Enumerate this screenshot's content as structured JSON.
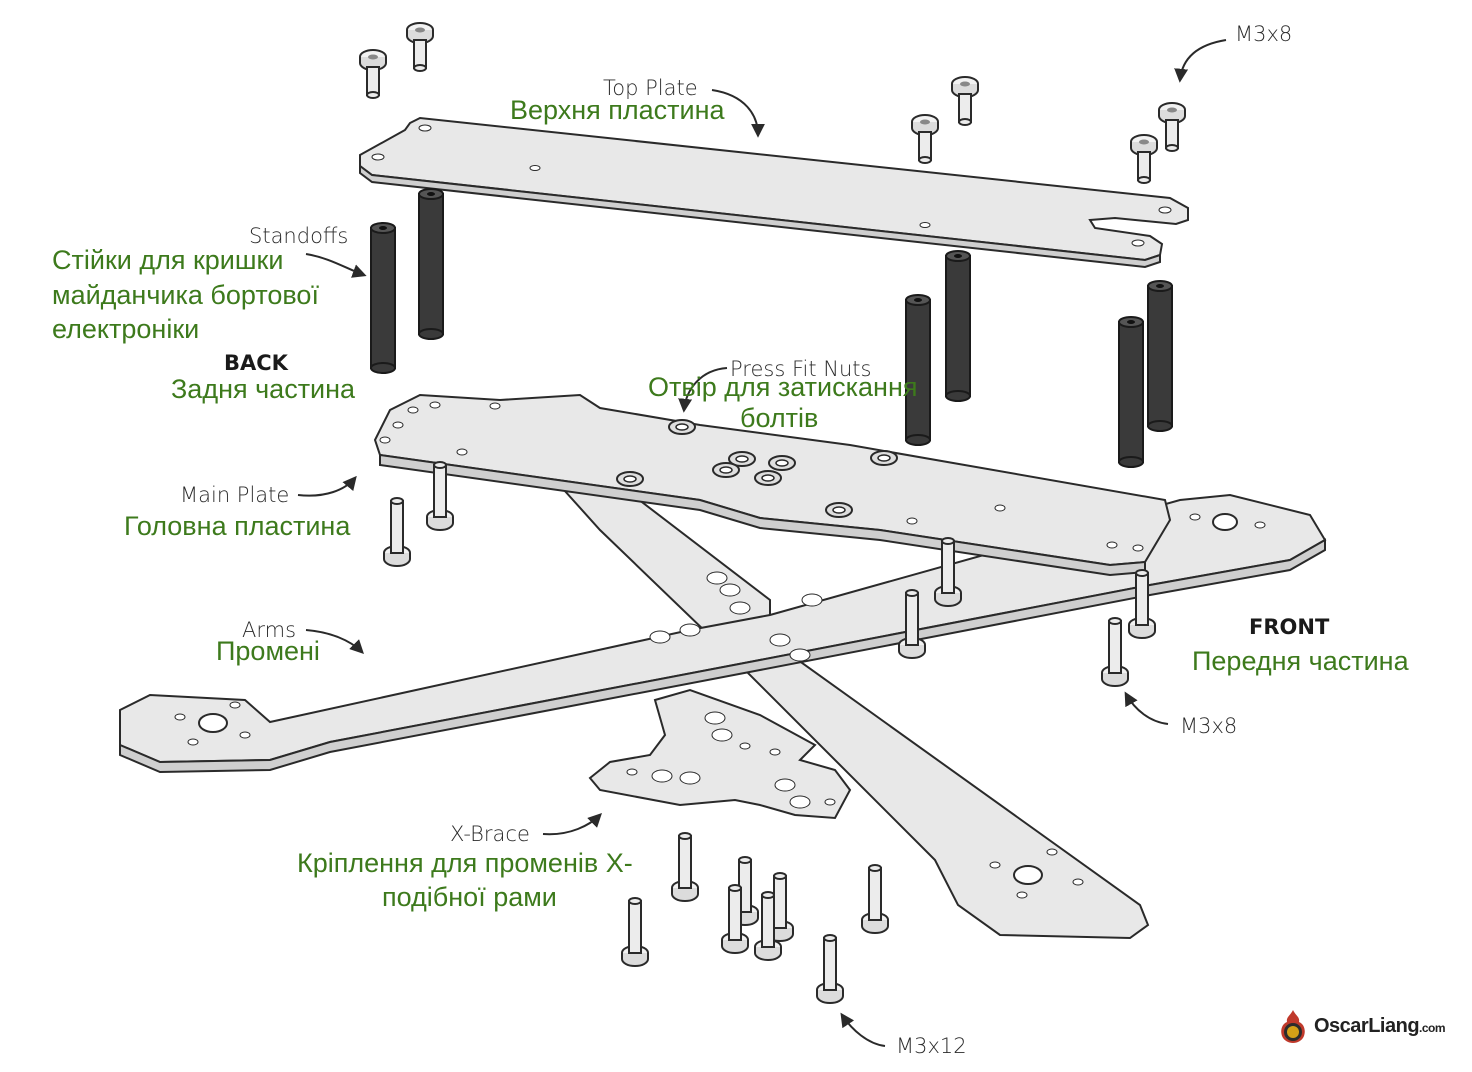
{
  "labels": {
    "m3x8_top": "M3x8",
    "top_plate_en": "Top Plate",
    "top_plate_ua": "Верхня пластина",
    "standoffs_en": "Standoffs",
    "standoffs_ua_1": "Стійки для кришки",
    "standoffs_ua_2": "майданчика бортової",
    "standoffs_ua_3": "електроніки",
    "back_en": "BACK",
    "back_ua": "Задня частина",
    "press_fit_en": "Press Fit Nuts",
    "press_fit_ua_1": "Отвір для затискання",
    "press_fit_ua_2": "болтів",
    "main_plate_en": "Main Plate",
    "main_plate_ua": "Головна пластина",
    "arms_en": "Arms",
    "arms_ua": "Промені",
    "front_en": "FRONT",
    "front_ua": "Передня частина",
    "m3x8_right": "M3x8",
    "xbrace_en": "X-Brace",
    "xbrace_ua_1": "Кріплення для променів X-",
    "xbrace_ua_2": "подібної рами",
    "m3x12": "M3x12"
  },
  "logo": {
    "text": "OscarLiang",
    "suffix": ".com"
  },
  "colors": {
    "plate_fill": "#e8e8e8",
    "plate_stroke": "#2a2a2a",
    "standoff": "#3a3a3a",
    "translation_text": "#3d7a1c",
    "english_text": "#2b2b2b"
  }
}
